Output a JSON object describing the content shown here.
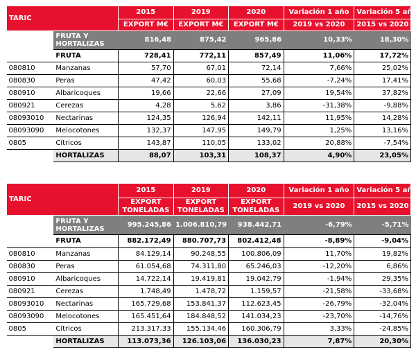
{
  "tables": [
    {
      "header": {
        "taric": "TARIC",
        "years": [
          "2015",
          "2019",
          "2020"
        ],
        "var1": "Variación 1 año",
        "var5": "Variación 5 años",
        "unit": "EXPORT M€",
        "var1_sub": "2019 vs 2020",
        "var5_sub": "2015 vs 2020"
      },
      "total_label": "FRUTA Y HORTALIZAS",
      "total_values": [
        "816,48",
        "875,42",
        "965,86",
        "10,33%",
        "18,30%"
      ],
      "fruta_label": "FRUTA",
      "fruta_values": [
        "728,41",
        "772,11",
        "857,49",
        "11,06%",
        "17,72%"
      ],
      "rows": [
        {
          "code": "080810",
          "name": "Manzanas",
          "values": [
            "57,70",
            "67,01",
            "72,14",
            "7,66%",
            "25,02%"
          ]
        },
        {
          "code": "080830",
          "name": "Peras",
          "values": [
            "47,42",
            "60,03",
            "55,68",
            "-7,24%",
            "17,41%"
          ]
        },
        {
          "code": "080910",
          "name": "Albaricoques",
          "values": [
            "19,66",
            "22,66",
            "27,09",
            "19,54%",
            "37,82%"
          ]
        },
        {
          "code": "080921",
          "name": "Cerezas",
          "values": [
            "4,28",
            "5,62",
            "3,86",
            "-31,38%",
            "-9,88%"
          ]
        },
        {
          "code": "08093010",
          "name": "Nectarinas",
          "values": [
            "124,35",
            "126,94",
            "142,11",
            "11,95%",
            "14,28%"
          ]
        },
        {
          "code": "08093090",
          "name": "Melocotones",
          "values": [
            "132,37",
            "147,95",
            "149,79",
            "1,25%",
            "13,16%"
          ]
        },
        {
          "code": "0805",
          "name": "Cítricos",
          "values": [
            "143,87",
            "110,05",
            "133,02",
            "20,88%",
            "-7,54%"
          ]
        }
      ],
      "horta_label": "HORTALIZAS",
      "horta_values": [
        "88,07",
        "103,31",
        "108,37",
        "4,90%",
        "23,05%"
      ]
    },
    {
      "header": {
        "taric": "TARIC",
        "years": [
          "2015",
          "2019",
          "2020"
        ],
        "var1": "Variación 1 año",
        "var5": "Variación 5 años",
        "unit": "EXPORT TONELADAS",
        "var1_sub": "2019 vs 2020",
        "var5_sub": "2015 vs 2020"
      },
      "total_label": "FRUTA Y HORTALIZAS",
      "total_values": [
        "995.245,86",
        "1.006.810,79",
        "938.442,71",
        "-6,79%",
        "-5,71%"
      ],
      "fruta_label": "FRUTA",
      "fruta_values": [
        "882.172,49",
        "880.707,73",
        "802.412,48",
        "-8,89%",
        "-9,04%"
      ],
      "rows": [
        {
          "code": "080810",
          "name": "Manzanas",
          "values": [
            "84.129,14",
            "90.248,55",
            "100.806,09",
            "11,70%",
            "19,82%"
          ]
        },
        {
          "code": "080830",
          "name": "Peras",
          "values": [
            "61.054,68",
            "74.311,80",
            "65.246,03",
            "-12,20%",
            "6,86%"
          ]
        },
        {
          "code": "080910",
          "name": "Albaricoques",
          "values": [
            "14.722,14",
            "19.419,81",
            "19.042,79",
            "-1,94%",
            "29,35%"
          ]
        },
        {
          "code": "080921",
          "name": "Cerezas",
          "values": [
            "1.748,49",
            "1.478,72",
            "1.159,57",
            "-21,58%",
            "-33,68%"
          ]
        },
        {
          "code": "08093010",
          "name": "Nectarinas",
          "values": [
            "165.729,68",
            "153.841,37",
            "112.623,45",
            "-26,79%",
            "-32,04%"
          ]
        },
        {
          "code": "08093090",
          "name": "Melocotones",
          "values": [
            "165.451,64",
            "184.848,52",
            "141.034,23",
            "-23,70%",
            "-14,76%"
          ]
        },
        {
          "code": "0805",
          "name": "Cítricos",
          "values": [
            "213.317,33",
            "155.134,46",
            "160.306,79",
            "3,33%",
            "-24,85%"
          ]
        }
      ],
      "horta_label": "HORTALIZAS",
      "horta_values": [
        "113.073,36",
        "126.103,06",
        "136.030,23",
        "7,87%",
        "20,30%"
      ]
    }
  ]
}
